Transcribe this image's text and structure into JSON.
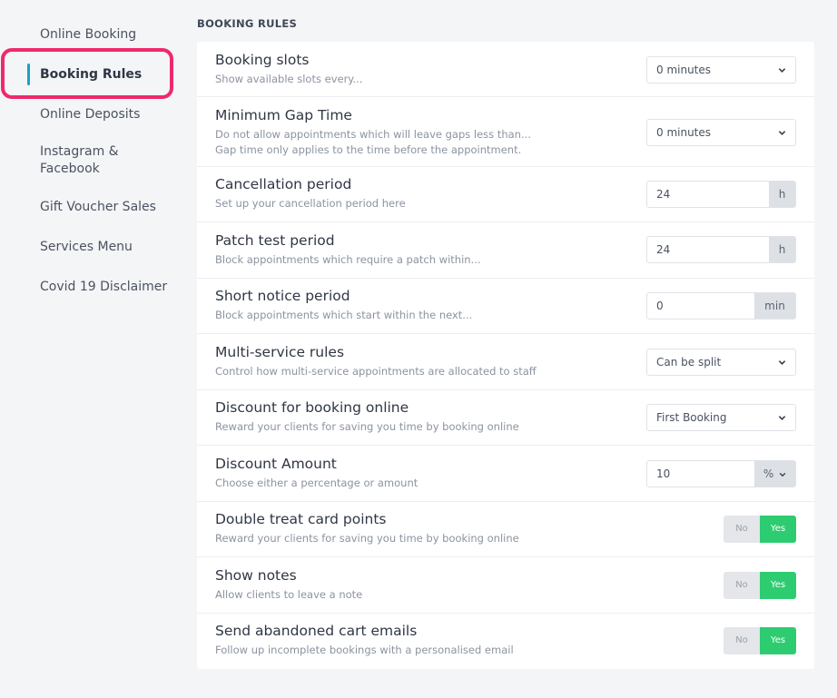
{
  "sidebar": {
    "items": [
      {
        "label": "Online Booking"
      },
      {
        "label": "Booking Rules",
        "active": true
      },
      {
        "label": "Online Deposits"
      },
      {
        "label": "Instagram &"
      },
      {
        "label": "Facebook"
      },
      {
        "label": "Gift Voucher Sales"
      },
      {
        "label": "Services Menu"
      },
      {
        "label": "Covid 19 Disclaimer"
      }
    ]
  },
  "colors": {
    "active_highlight": "#ee2a6b",
    "active_bar": "#1ba1c9",
    "toggle_yes": "#2ecc71"
  },
  "main": {
    "section_title": "BOOKING RULES",
    "rules": [
      {
        "title": "Booking slots",
        "desc": [
          "Show available slots every..."
        ],
        "control": "select",
        "value": "0 minutes"
      },
      {
        "title": "Minimum Gap Time",
        "desc": [
          "Do not allow appointments which will leave gaps less than...",
          "Gap time only applies to the time before the appointment."
        ],
        "control": "select",
        "value": "0 minutes"
      },
      {
        "title": "Cancellation period",
        "desc": [
          "Set up your cancellation period here"
        ],
        "control": "input",
        "value": "24",
        "unit": "h"
      },
      {
        "title": "Patch test period",
        "desc": [
          "Block appointments which require a patch within..."
        ],
        "control": "input",
        "value": "24",
        "unit": "h"
      },
      {
        "title": "Short notice period",
        "desc": [
          "Block appointments which start within the next..."
        ],
        "control": "input",
        "value": "0",
        "unit": "min"
      },
      {
        "title": "Multi-service rules",
        "desc": [
          "Control how multi-service appointments are allocated to staff"
        ],
        "control": "select",
        "value": "Can be split"
      },
      {
        "title": "Discount for booking online",
        "desc": [
          "Reward your clients for saving you time by booking online"
        ],
        "control": "select",
        "value": "First Booking"
      },
      {
        "title": "Discount Amount",
        "desc": [
          "Choose either a percentage or amount"
        ],
        "control": "input-select",
        "value": "10",
        "unit": "%"
      },
      {
        "title": "Double treat card points",
        "desc": [
          "Reward your clients for saving you time by booking online"
        ],
        "control": "toggle",
        "no_label": "No",
        "yes_label": "Yes",
        "selected": "Yes"
      },
      {
        "title": "Show notes",
        "desc": [
          "Allow clients to leave a note"
        ],
        "control": "toggle",
        "no_label": "No",
        "yes_label": "Yes",
        "selected": "Yes"
      },
      {
        "title": "Send abandoned cart emails",
        "desc": [
          "Follow up incomplete bookings with a personalised email"
        ],
        "control": "toggle",
        "no_label": "No",
        "yes_label": "Yes",
        "selected": "Yes"
      }
    ]
  }
}
